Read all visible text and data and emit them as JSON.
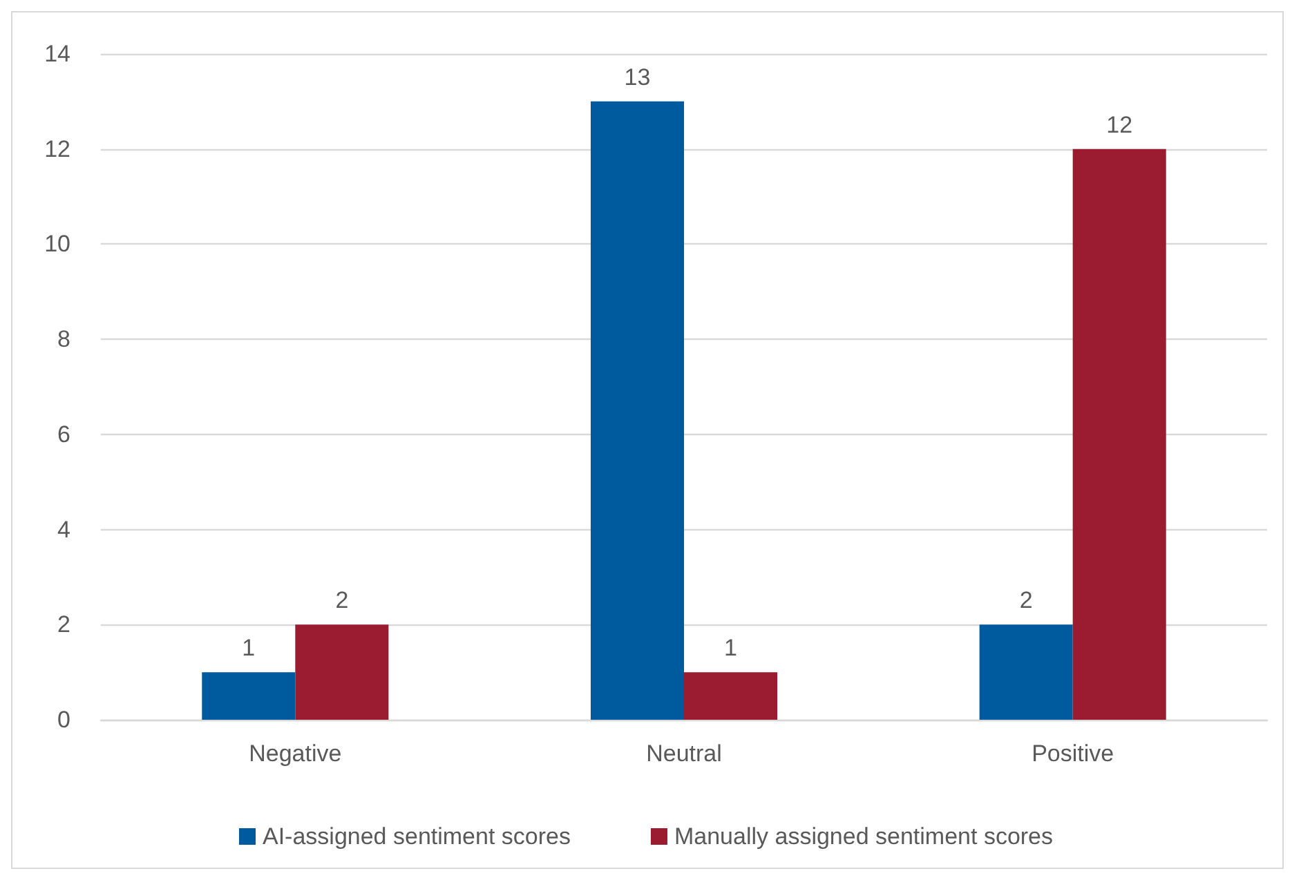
{
  "chart_data": {
    "type": "bar",
    "categories": [
      "Negative",
      "Neutral",
      "Positive"
    ],
    "series": [
      {
        "name": "AI-assigned sentiment scores",
        "color": "#005a9e",
        "values": [
          1,
          13,
          2
        ]
      },
      {
        "name": "Manually assigned sentiment scores",
        "color": "#9b1b30",
        "values": [
          2,
          1,
          12
        ]
      }
    ],
    "ylim": [
      0,
      14
    ],
    "yticks": [
      0,
      2,
      4,
      6,
      8,
      10,
      12,
      14
    ],
    "grid": "y",
    "legend": "bottom",
    "data_labels": true
  }
}
